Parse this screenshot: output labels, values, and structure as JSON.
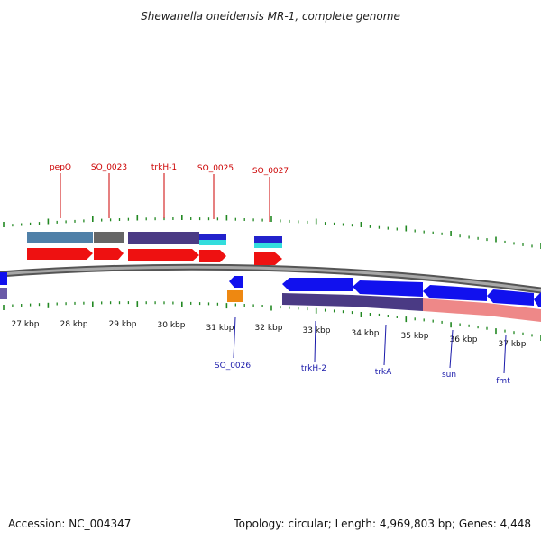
{
  "title": "Shewanella oneidensis MR-1, complete genome",
  "footer": {
    "accession": "Accession: NC_004347",
    "summary": "Topology: circular; Length: 4,969,803 bp; Genes: 4,448"
  },
  "genome": {
    "length_bp": 4969803,
    "genes": 4448,
    "topology": "circular"
  },
  "scale_labels": [
    "27 kbp",
    "28 kbp",
    "29 kbp",
    "30 kbp",
    "31 kbp",
    "32 kbp",
    "33 kbp",
    "34 kbp",
    "35 kbp",
    "36 kbp",
    "37 kbp"
  ],
  "forward_gene_labels": [
    "pepQ",
    "SO_0023",
    "trkH-1",
    "SO_0025",
    "SO_0027"
  ],
  "reverse_gene_labels": [
    "SO_0026",
    "trkH-2",
    "trkA",
    "sun",
    "fmt"
  ],
  "colors": {
    "forward_label": "#cc0000",
    "reverse_label": "#1a1aaa",
    "forward_cds": "#ee1111",
    "reverse_cds": "#1111ee",
    "ticks": "#228822",
    "backbone": "#888888"
  }
}
